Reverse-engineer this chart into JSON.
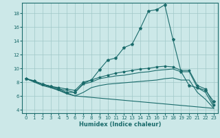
{
  "xlabel": "Humidex (Indice chaleur)",
  "background_color": "#cce8e8",
  "grid_color": "#a0c8c8",
  "line_color": "#1a6b6b",
  "xlim": [
    -0.5,
    23.5
  ],
  "ylim": [
    3.5,
    19.5
  ],
  "yticks": [
    4,
    6,
    8,
    10,
    12,
    14,
    16,
    18
  ],
  "xticks": [
    0,
    1,
    2,
    3,
    4,
    5,
    6,
    7,
    8,
    9,
    10,
    11,
    12,
    13,
    14,
    15,
    16,
    17,
    18,
    19,
    20,
    21,
    22,
    23
  ],
  "line1_x": [
    0,
    1,
    2,
    3,
    4,
    5,
    6,
    7,
    8,
    9,
    10,
    11,
    12,
    13,
    14,
    15,
    16,
    17,
    18,
    19,
    20,
    21,
    22,
    23
  ],
  "line1_y": [
    8.5,
    8.2,
    7.7,
    7.4,
    7.0,
    6.5,
    6.5,
    7.8,
    8.3,
    9.8,
    11.2,
    11.5,
    13.0,
    13.5,
    15.8,
    18.3,
    18.5,
    19.2,
    14.2,
    9.5,
    7.5,
    7.2,
    6.8,
    5.2
  ],
  "line2_x": [
    0,
    2,
    3,
    4,
    5,
    6,
    7,
    8,
    9,
    10,
    11,
    12,
    13,
    14,
    15,
    16,
    17,
    18,
    19,
    20,
    21,
    22,
    23
  ],
  "line2_y": [
    8.5,
    7.7,
    7.4,
    7.2,
    7.0,
    6.8,
    8.0,
    8.3,
    8.7,
    9.0,
    9.3,
    9.5,
    9.7,
    9.9,
    10.0,
    10.2,
    10.3,
    10.2,
    9.7,
    9.7,
    7.5,
    7.0,
    4.7
  ],
  "line3_x": [
    0,
    2,
    3,
    4,
    5,
    6,
    7,
    8,
    9,
    10,
    11,
    12,
    13,
    14,
    15,
    16,
    17,
    18,
    19,
    20,
    21,
    22,
    23
  ],
  "line3_y": [
    8.5,
    7.7,
    7.4,
    7.0,
    6.8,
    6.5,
    7.7,
    8.0,
    8.5,
    8.7,
    8.9,
    9.0,
    9.2,
    9.4,
    9.5,
    9.7,
    9.8,
    9.9,
    9.5,
    9.5,
    7.2,
    6.5,
    4.4
  ],
  "line4_x": [
    0,
    2,
    3,
    4,
    5,
    6,
    7,
    8,
    9,
    10,
    11,
    12,
    13,
    14,
    15,
    16,
    17,
    18,
    19,
    20,
    21,
    22,
    23
  ],
  "line4_y": [
    8.5,
    7.5,
    7.2,
    6.8,
    6.3,
    6.0,
    6.5,
    7.2,
    7.5,
    7.7,
    7.8,
    7.9,
    8.0,
    8.1,
    8.2,
    8.3,
    8.5,
    8.6,
    8.3,
    8.3,
    6.5,
    5.5,
    4.2
  ],
  "line5_x": [
    0,
    6,
    23
  ],
  "line5_y": [
    8.5,
    6.0,
    4.2
  ]
}
